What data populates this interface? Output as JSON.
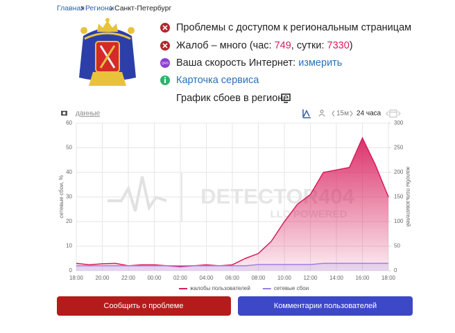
{
  "breadcrumb": [
    "Главная",
    "Регионы",
    "Санкт-Петербург"
  ],
  "status": {
    "access": "Проблемы с доступом к региональным страницам",
    "complaints": {
      "before": "Жалоб – много (час: ",
      "hour": 749,
      "between": ", сутки: ",
      "day": 7330,
      "after": ")"
    },
    "speed": {
      "text": "Ваша скорость Интернет: ",
      "link": "измерить",
      "icon": "QMS"
    },
    "card": "Карточка сервиса",
    "graph": "График сбоев в регионе"
  },
  "toolbar": {
    "data_link": "данные",
    "interval": "15м",
    "period": "24 часа"
  },
  "watermark": {
    "brand": "DETECTOR404",
    "sub": "LLC POWERED"
  },
  "chart_data": {
    "type": "line",
    "categories": [
      "18:00",
      null,
      "20:00",
      null,
      "22:00",
      null,
      "00:00",
      null,
      "02:00",
      null,
      "04:00",
      null,
      "06:00",
      null,
      "08:00",
      null,
      "10:00",
      null,
      "12:00",
      null,
      "14:00",
      null,
      "16:00",
      null,
      "18:00"
    ],
    "series": [
      {
        "name": "жалобы пользователей",
        "color": "#d81b5a",
        "axis": "y2",
        "values": [
          15,
          12,
          14,
          15,
          10,
          12,
          12,
          10,
          8,
          10,
          12,
          10,
          12,
          25,
          35,
          60,
          100,
          135,
          155,
          200,
          205,
          210,
          270,
          215,
          150
        ]
      },
      {
        "name": "сетевые сбои",
        "color": "#9b7fe6",
        "values": [
          2,
          2,
          2,
          2,
          2,
          2,
          2,
          2,
          2,
          2,
          2,
          2,
          2,
          2,
          2.5,
          2.5,
          2.5,
          2.5,
          2.5,
          3,
          3,
          3,
          3,
          3,
          3
        ]
      }
    ],
    "ylabel": "сетевые сбои, %",
    "y2label": "жалобы пользователей",
    "ylim": [
      0,
      60
    ],
    "yticks": [
      0,
      10,
      20,
      30,
      40,
      50,
      60
    ],
    "y2lim": [
      0,
      300
    ],
    "y2ticks": [
      0,
      50,
      100,
      150,
      200,
      250,
      300
    ],
    "grid": true,
    "legend": "bottom"
  },
  "buttons": {
    "report": "Сообщить о проблеме",
    "comments": "Комментарии пользователей"
  }
}
